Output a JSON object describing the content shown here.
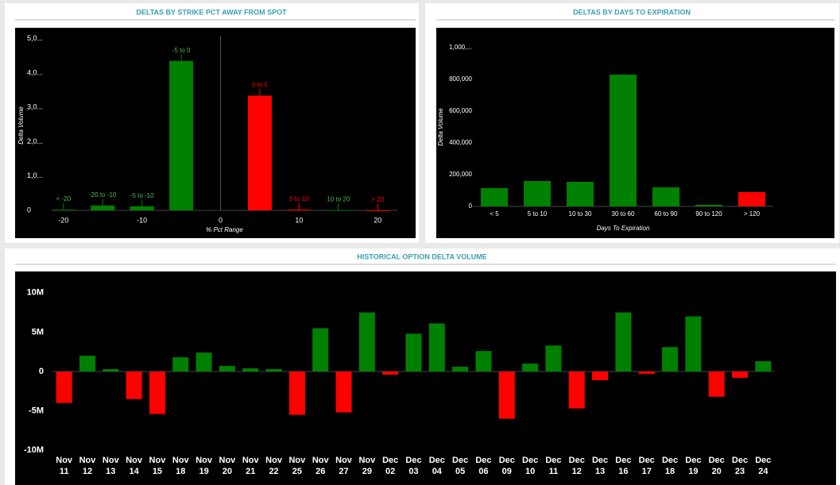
{
  "chart_data": [
    {
      "type": "bar",
      "title": "DELTAS BY STRIKE PCT AWAY FROM SPOT",
      "x_label": "% Pct Range",
      "y_label": "Delta Volume",
      "x": [
        -20,
        -15,
        -10,
        -5,
        5,
        10,
        15,
        20
      ],
      "labels": [
        "< -20",
        "-20 to -10",
        "-5 to -10",
        "-5 to 0",
        "0 to 5",
        "5 to 10",
        "10 to 20",
        "> 20"
      ],
      "values": [
        20000,
        140000,
        120000,
        4350000,
        3340000,
        20000,
        10000,
        5000
      ],
      "colors": [
        "#008000",
        "#008000",
        "#008000",
        "#008000",
        "#ff0000",
        "#ff0000",
        "#008000",
        "#ff0000"
      ],
      "xlim": [
        -21.5,
        22.5
      ],
      "xticks": [
        -20,
        -10,
        0,
        10,
        20
      ],
      "ylim": [
        0,
        5200000
      ],
      "yticks": [
        0,
        {
          "value": 1000000,
          "label": "1,0..."
        },
        {
          "value": 2000000,
          "label": "2,0..."
        },
        {
          "value": 3000000,
          "label": "3,0..."
        },
        {
          "value": 4000000,
          "label": "4,0..."
        },
        {
          "value": 5000000,
          "label": "5,0..."
        }
      ]
    },
    {
      "type": "bar",
      "title": "DELTAS BY DAYS TO EXPIRATION",
      "x_label": "Days To Expiration",
      "y_label": "Delta Volume",
      "categories": [
        "< 5",
        "5 to 10",
        "10 to 30",
        "30 to 60",
        "60 to 90",
        "90 to 120",
        "> 120"
      ],
      "values": [
        115000,
        160000,
        155000,
        830000,
        120000,
        10000,
        90000
      ],
      "colors": [
        "#008000",
        "#008000",
        "#008000",
        "#008000",
        "#008000",
        "#008000",
        "#ff0000"
      ],
      "ylim": [
        0,
        1075000
      ],
      "yticks": [
        0,
        {
          "value": 200000,
          "label": "200,000"
        },
        {
          "value": 400000,
          "label": "400,000"
        },
        {
          "value": 600000,
          "label": "600,000"
        },
        {
          "value": 800000,
          "label": "800,000"
        },
        {
          "value": 1000000,
          "label": "1,000,..."
        }
      ]
    },
    {
      "type": "bar",
      "title": "HISTORICAL OPTION DELTA VOLUME",
      "categories": [
        [
          "Nov",
          "11"
        ],
        [
          "Nov",
          "12"
        ],
        [
          "Nov",
          "13"
        ],
        [
          "Nov",
          "14"
        ],
        [
          "Nov",
          "15"
        ],
        [
          "Nov",
          "18"
        ],
        [
          "Nov",
          "19"
        ],
        [
          "Nov",
          "20"
        ],
        [
          "Nov",
          "21"
        ],
        [
          "Nov",
          "22"
        ],
        [
          "Nov",
          "25"
        ],
        [
          "Nov",
          "26"
        ],
        [
          "Nov",
          "27"
        ],
        [
          "Nov",
          "29"
        ],
        [
          "Dec",
          "02"
        ],
        [
          "Dec",
          "03"
        ],
        [
          "Dec",
          "04"
        ],
        [
          "Dec",
          "05"
        ],
        [
          "Dec",
          "06"
        ],
        [
          "Dec",
          "09"
        ],
        [
          "Dec",
          "10"
        ],
        [
          "Dec",
          "11"
        ],
        [
          "Dec",
          "12"
        ],
        [
          "Dec",
          "13"
        ],
        [
          "Dec",
          "16"
        ],
        [
          "Dec",
          "17"
        ],
        [
          "Dec",
          "18"
        ],
        [
          "Dec",
          "19"
        ],
        [
          "Dec",
          "20"
        ],
        [
          "Dec",
          "23"
        ],
        [
          "Dec",
          "24"
        ]
      ],
      "values": [
        -4000000,
        2000000,
        300000,
        -3500000,
        -5400000,
        1800000,
        2400000,
        700000,
        400000,
        300000,
        -5500000,
        5500000,
        -5200000,
        7500000,
        -400000,
        4800000,
        6100000,
        600000,
        2600000,
        -6000000,
        1000000,
        3300000,
        -4700000,
        -1100000,
        7500000,
        -300000,
        3100000,
        7000000,
        -3200000,
        -800000,
        1300000
      ],
      "positive_color": "#008000",
      "negative_color": "#ff0000",
      "ylim": [
        -12300000,
        12400000
      ],
      "yticks": [
        {
          "value": -10000000,
          "label": "-10M"
        },
        {
          "value": -5000000,
          "label": "-5M"
        },
        0,
        {
          "value": 5000000,
          "label": "5M"
        },
        {
          "value": 10000000,
          "label": "10M"
        }
      ]
    }
  ]
}
